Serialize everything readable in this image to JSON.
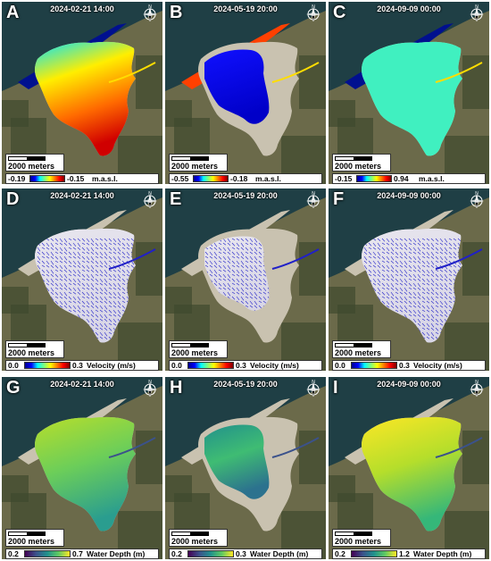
{
  "panels": [
    {
      "letter": "A",
      "time": "2024-02-21 14:00",
      "scale": "2000 meters",
      "legend_min": "-0.19",
      "legend_max": "-0.15",
      "legend_unit": "m.a.s.l.",
      "colormap": "jet"
    },
    {
      "letter": "B",
      "time": "2024-05-19 20:00",
      "scale": "2000 meters",
      "legend_min": "-0.55",
      "legend_max": "-0.18",
      "legend_unit": "m.a.s.l.",
      "colormap": "jet"
    },
    {
      "letter": "C",
      "time": "2024-09-09 00:00",
      "scale": "2000 meters",
      "legend_min": "-0.15",
      "legend_max": "0.94",
      "legend_unit": "m.a.s.l.",
      "colormap": "jet"
    },
    {
      "letter": "D",
      "time": "2024-02-21 14:00",
      "scale": "2000 meters",
      "legend_min": "0.0",
      "legend_max": "0.3",
      "legend_unit": "Velocity (m/s)",
      "colormap": "jet"
    },
    {
      "letter": "E",
      "time": "2024-05-19 20:00",
      "scale": "2000 meters",
      "legend_min": "0.0",
      "legend_max": "0.3",
      "legend_unit": "Velocity (m/s)",
      "colormap": "jet"
    },
    {
      "letter": "F",
      "time": "2024-09-09 00:00",
      "scale": "2000 meters",
      "legend_min": "0.0",
      "legend_max": "0.3",
      "legend_unit": "Velocity (m/s)",
      "colormap": "jet"
    },
    {
      "letter": "G",
      "time": "2024-02-21 14:00",
      "scale": "2000 meters",
      "legend_min": "0.2",
      "legend_max": "0.7",
      "legend_unit": "Water Depth (m)",
      "colormap": "viridis"
    },
    {
      "letter": "H",
      "time": "2024-05-19 20:00",
      "scale": "2000 meters",
      "legend_min": "0.2",
      "legend_max": "0.3",
      "legend_unit": "Water Depth (m)",
      "colormap": "viridis"
    },
    {
      "letter": "I",
      "time": "2024-09-09 00:00",
      "scale": "2000 meters",
      "legend_min": "0.2",
      "legend_max": "1.2",
      "legend_unit": "Water Depth (m)",
      "colormap": "viridis"
    }
  ],
  "compass_letter": "N",
  "colors": {
    "sea": "#1f3f45",
    "land": "#6b6a4a",
    "forest": "#3f4a2e",
    "sand": "#c9c2b0",
    "jet_low": "#00008f",
    "jet_high": "#7f0000",
    "viridis_low": "#440154",
    "viridis_high": "#fde725",
    "vector_color": "#2020c8"
  }
}
